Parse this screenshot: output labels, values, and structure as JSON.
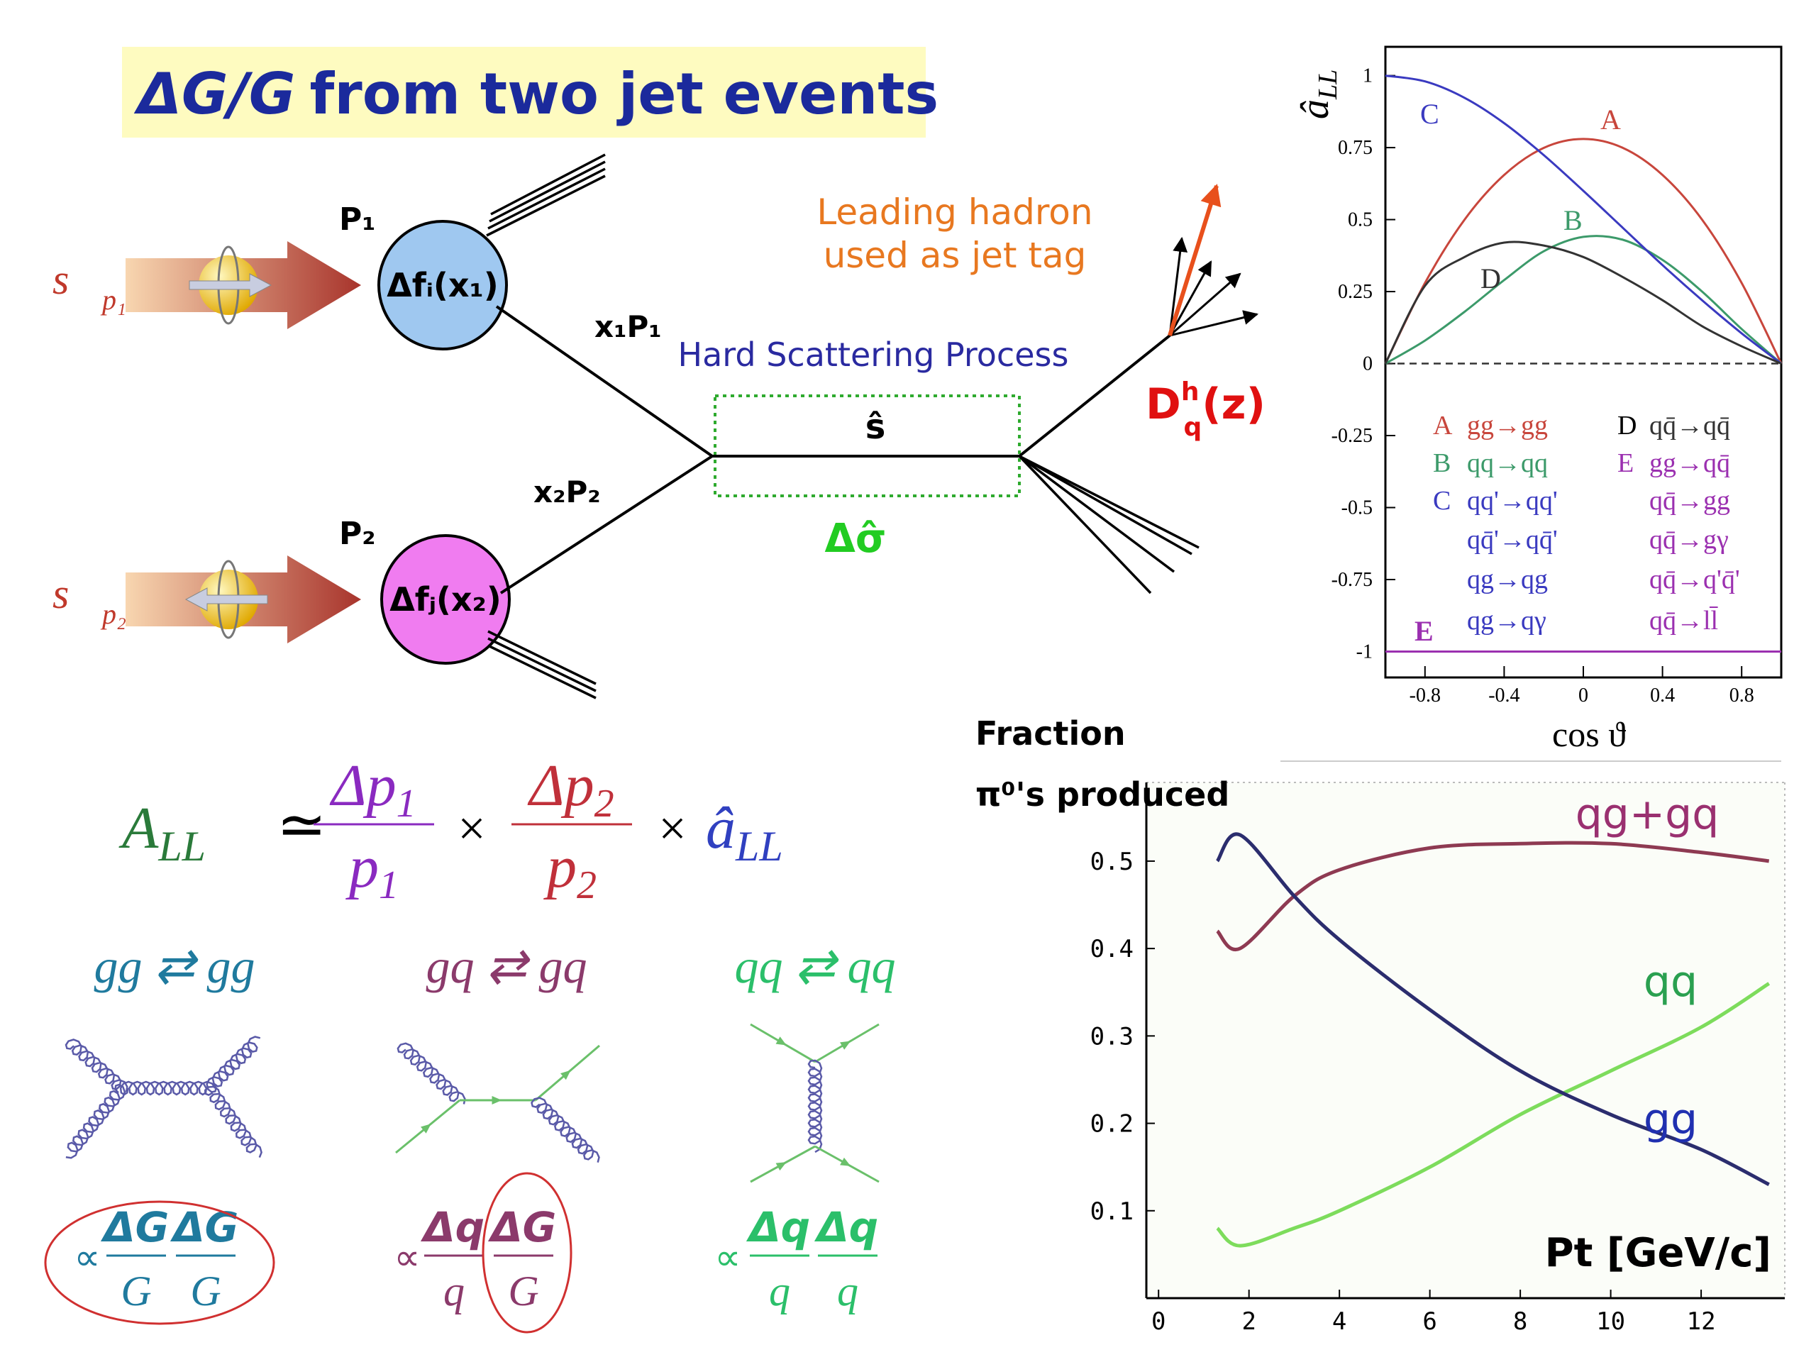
{
  "title": {
    "symbol": "ΔG/G",
    "text": "from two jet events"
  },
  "diagram": {
    "beams": [
      {
        "spin": "s⃗",
        "spin_sub": "p₁",
        "proton": "P₁",
        "pdf": "Δfᵢ(x₁)",
        "momentum": "x₁P₁"
      },
      {
        "spin": "s⃗",
        "spin_sub": "p₂",
        "proton": "P₂",
        "pdf": "Δfⱼ(x₂)",
        "momentum": "x₂P₂"
      }
    ],
    "subprocess": {
      "label": "Hard Scattering Process",
      "energy": "ŝ",
      "cross_section": "Δσ̂"
    },
    "tag": [
      "Leading hadron",
      "used as jet tag"
    ],
    "fragmentation": {
      "base": "D",
      "sup": "h",
      "sub": "q",
      "arg": "(z)"
    }
  },
  "formula": {
    "lhs": {
      "base": "A",
      "sub": "LL"
    },
    "relation": "≃",
    "factors": [
      {
        "num": {
          "base": "Δp",
          "sub": "1"
        },
        "den": {
          "base": "p",
          "sub": "1"
        }
      },
      {
        "num": {
          "base": "Δp",
          "sub": "2"
        },
        "den": {
          "base": "p",
          "sub": "2"
        }
      }
    ],
    "operators": [
      "×",
      "×"
    ],
    "rhs": {
      "base": "â",
      "sub": "LL"
    }
  },
  "channels": [
    {
      "label": "gg ⇄ gg",
      "proportional": "∝",
      "fractions": [
        {
          "num": "ΔG",
          "den": "G"
        },
        {
          "num": "ΔG",
          "den": "G"
        }
      ]
    },
    {
      "label": "gq ⇄ gq",
      "proportional": "∝",
      "fractions": [
        {
          "num": "Δq",
          "den": "q"
        },
        {
          "num": "ΔG",
          "den": "G"
        }
      ]
    },
    {
      "label": "qq ⇄ qq",
      "proportional": "∝",
      "fractions": [
        {
          "num": "Δq",
          "den": "q"
        },
        {
          "num": "Δq",
          "den": "q"
        }
      ]
    }
  ],
  "chart_data": [
    {
      "type": "line",
      "ylabel": {
        "base": "â",
        "sub": "LL"
      },
      "xlabel": "cos ϑ",
      "x": [
        -1,
        -0.8,
        -0.6,
        -0.4,
        -0.2,
        0,
        0.2,
        0.4,
        0.6,
        0.8,
        1
      ],
      "xlim": [
        -1,
        1
      ],
      "ylim": [
        -1.09,
        1.1
      ],
      "xticks": [
        -0.8,
        -0.4,
        0,
        0.4,
        0.8
      ],
      "yticks": [
        -1,
        -0.75,
        -0.5,
        -0.25,
        0,
        0.25,
        0.5,
        0.75,
        1
      ],
      "hline": 0,
      "series": [
        {
          "name": "A",
          "color": "#c8463c",
          "processes": [
            "gg→gg"
          ],
          "values": [
            0,
            0.28,
            0.5,
            0.655,
            0.749,
            0.78,
            0.749,
            0.655,
            0.5,
            0.28,
            0
          ]
        },
        {
          "name": "B",
          "color": "#3c9a6a",
          "processes": [
            "qq→qq"
          ],
          "values": [
            0,
            0.08,
            0.18,
            0.29,
            0.39,
            0.44,
            0.43,
            0.36,
            0.25,
            0.12,
            0
          ]
        },
        {
          "name": "C",
          "color": "#3a3ac0",
          "processes": [
            "qq'→qq'",
            "qq̄'→qq̄'",
            "qg→qg",
            "qg→qγ"
          ],
          "values": [
            1,
            0.98,
            0.923,
            0.835,
            0.724,
            0.6,
            0.471,
            0.342,
            0.22,
            0.105,
            0
          ]
        },
        {
          "name": "D",
          "color": "#333333",
          "processes": [
            "qq̄→qq̄"
          ],
          "values": [
            0,
            0.27,
            0.37,
            0.42,
            0.41,
            0.37,
            0.3,
            0.22,
            0.13,
            0.06,
            0
          ]
        },
        {
          "name": "E",
          "color": "#9b30b0",
          "processes": [
            "gg→qq̄",
            "qq̄→gg",
            "qq̄→gγ",
            "qq̄→q'q̄'",
            "qq̄→ll̄"
          ],
          "values": [
            -1,
            -1,
            -1,
            -1,
            -1,
            -1,
            -1,
            -1,
            -1,
            -1,
            -1
          ]
        }
      ]
    },
    {
      "type": "line",
      "ylabel": [
        "Fraction",
        "π⁰'s produced"
      ],
      "xlabel": "Pt [GeV/c]",
      "x": [
        1.3,
        1.8,
        3,
        4,
        6,
        8,
        10,
        12,
        13.5
      ],
      "xlim": [
        -0.27,
        13.85
      ],
      "ylim": [
        0,
        0.59
      ],
      "xticks": [
        0,
        2,
        4,
        6,
        8,
        10,
        12
      ],
      "yticks": [
        0.1,
        0.2,
        0.3,
        0.4,
        0.5
      ],
      "series": [
        {
          "name": "qg+gq",
          "color": "#8e3a52",
          "values": [
            0.42,
            0.4,
            0.46,
            0.49,
            0.515,
            0.52,
            0.52,
            0.51,
            0.5
          ]
        },
        {
          "name": "qq",
          "color": "#7ddc5c",
          "values": [
            0.08,
            0.06,
            0.08,
            0.1,
            0.15,
            0.21,
            0.26,
            0.31,
            0.36
          ]
        },
        {
          "name": "gg",
          "color": "#2b2d6e",
          "values": [
            0.5,
            0.53,
            0.46,
            0.41,
            0.33,
            0.26,
            0.21,
            0.17,
            0.13
          ]
        }
      ]
    }
  ]
}
